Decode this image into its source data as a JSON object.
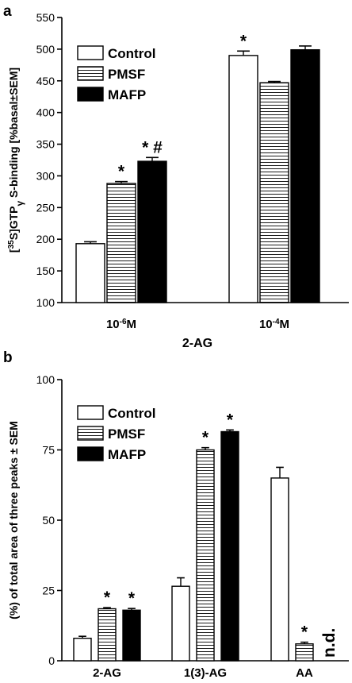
{
  "chart_data": [
    {
      "panel": "a",
      "type": "bar",
      "xlabel": "2-AG",
      "ylabel": "[35S]GTPγS-binding [%basal±SEM]",
      "ylim": [
        100,
        550
      ],
      "yticks": [
        100,
        150,
        200,
        250,
        300,
        350,
        400,
        450,
        500,
        550
      ],
      "categories": [
        {
          "base": "10",
          "sup": "-6",
          "unit": "M"
        },
        {
          "base": "10",
          "sup": "-4",
          "unit": "M"
        }
      ],
      "legend": [
        "Control",
        "PMSF",
        "MAFP"
      ],
      "legend_position": "top-left",
      "series": [
        {
          "name": "Control",
          "fill": "white",
          "values": [
            193,
            490
          ],
          "errors": [
            3,
            7
          ]
        },
        {
          "name": "PMSF",
          "fill": "horizontal-stripes",
          "values": [
            288,
            447
          ],
          "errors": [
            3,
            2
          ]
        },
        {
          "name": "MAFP",
          "fill": "black",
          "values": [
            323,
            499
          ],
          "errors": [
            6,
            6
          ]
        }
      ],
      "annotations": [
        [
          "",
          "*"
        ],
        [
          "*",
          ""
        ],
        [
          "* #",
          ""
        ]
      ]
    },
    {
      "panel": "b",
      "type": "bar",
      "ylabel": "(%) of total area of three peaks ± SEM",
      "ylim": [
        0,
        100
      ],
      "yticks": [
        0,
        25,
        50,
        75,
        100
      ],
      "categories": [
        "2-AG",
        "1(3)-AG",
        "AA"
      ],
      "legend": [
        "Control",
        "PMSF",
        "MAFP"
      ],
      "legend_position": "top-left",
      "series": [
        {
          "name": "Control",
          "fill": "white",
          "values": [
            8,
            26.5,
            65
          ],
          "errors": [
            0.7,
            3,
            3.8
          ]
        },
        {
          "name": "PMSF",
          "fill": "horizontal-stripes",
          "values": [
            18.5,
            75,
            6
          ],
          "errors": [
            0.4,
            0.8,
            0.6
          ]
        },
        {
          "name": "MAFP",
          "fill": "black",
          "values": [
            18,
            81.5,
            null
          ],
          "errors": [
            0.6,
            0.6,
            null
          ]
        }
      ],
      "annotations": [
        [
          "",
          "",
          ""
        ],
        [
          "*",
          "*",
          "*"
        ],
        [
          "*",
          "*",
          "n.d."
        ]
      ]
    }
  ]
}
